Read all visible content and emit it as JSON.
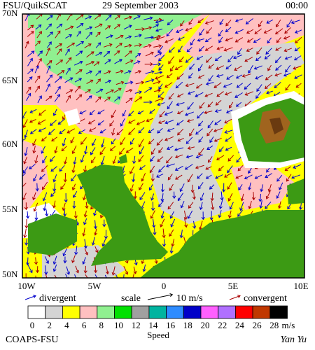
{
  "header": {
    "product": "FSU/QuikSCAT",
    "date": "29 September 2003",
    "time": "00:00"
  },
  "lat_labels": [
    "70N",
    "65N",
    "60N",
    "55N",
    "50N"
  ],
  "lon_labels": [
    "10W",
    "5W",
    "0",
    "5E",
    "10E"
  ],
  "legend": {
    "divergent": "divergent",
    "scale": "scale",
    "scale_value": "10 m/s",
    "convergent": "convergent",
    "divergent_color": "#0000cc",
    "convergent_color": "#aa0000"
  },
  "colorbar": {
    "title": "Speed",
    "unit": "m/s",
    "labels": [
      "0",
      "2",
      "4",
      "6",
      "8",
      "10",
      "12",
      "14",
      "16",
      "18",
      "20",
      "22",
      "24",
      "26",
      "28"
    ],
    "colors": [
      "#ffffff",
      "#d4d4d4",
      "#ffff00",
      "#ffc0c0",
      "#90f090",
      "#00e000",
      "#a0a0a0",
      "#00b4a0",
      "#2e8cff",
      "#0000c8",
      "#ff60ff",
      "#b070ff",
      "#ff0000",
      "#c03800",
      "#000000"
    ]
  },
  "footer": {
    "left": "COAPS-FSU",
    "right": "Yan Yu"
  }
}
